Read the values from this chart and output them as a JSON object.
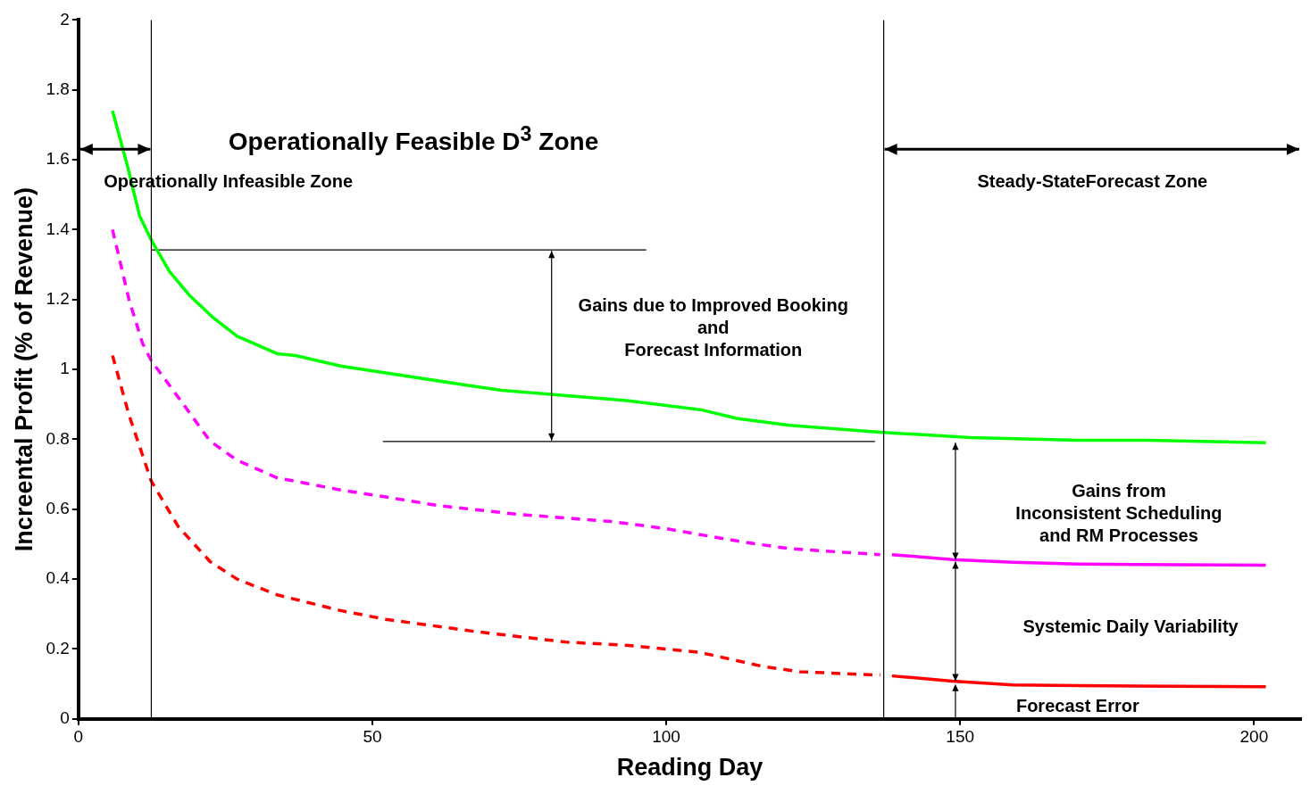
{
  "chart_data": {
    "type": "line",
    "xlabel": "Reading Day",
    "ylabel": "Increental Profit (% of Revenue)",
    "xlim": [
      0,
      208
    ],
    "xticks": [
      0,
      50,
      100,
      150,
      200
    ],
    "ylim": [
      0,
      2
    ],
    "yticks": [
      0,
      {
        "value": 0.2,
        "label": "0.2"
      },
      {
        "value": 0.4,
        "label": "0.4"
      },
      {
        "value": 0.6,
        "label": "0.6"
      },
      {
        "value": 0.8,
        "label": "0.8"
      },
      1,
      {
        "value": 1.2,
        "label": "1.2"
      },
      {
        "value": 1.4,
        "label": "1.4"
      },
      {
        "value": 1.6,
        "label": "1.6"
      },
      {
        "value": 1.8,
        "label": "1.8"
      },
      2
    ],
    "grid": false,
    "legend": false,
    "marker": "none",
    "series": [
      {
        "color": "#00ff00",
        "line_style": "solid",
        "x": [
          5.8,
          8.3,
          10.4,
          12.4,
          15.5,
          19,
          22.8,
          27,
          33.8,
          36.9,
          44.6,
          52.3,
          66,
          72,
          90.5,
          93.6,
          105.8,
          112,
          121,
          136.4,
          151.8,
          170,
          182,
          202
        ],
        "values": [
          1.74,
          1.585,
          1.44,
          1.37,
          1.28,
          1.21,
          1.15,
          1.095,
          1.045,
          1.04,
          1.01,
          0.99,
          0.955,
          0.94,
          0.915,
          0.91,
          0.885,
          0.86,
          0.84,
          0.82,
          0.805,
          0.797,
          0.797,
          0.79
        ]
      },
      {
        "color": "#ff00ff",
        "line_style": "dashed",
        "x": [
          5.8,
          8.6,
          10.9,
          12.4,
          17,
          22.4,
          27,
          33.8,
          44.6,
          52.3,
          61.4,
          75,
          90.5,
          99.7,
          113.5,
          121,
          136.4
        ],
        "values": [
          1.4,
          1.2,
          1.075,
          1.025,
          0.92,
          0.795,
          0.74,
          0.69,
          0.655,
          0.635,
          0.61,
          0.585,
          0.565,
          0.545,
          0.505,
          0.487,
          0.47
        ]
      },
      {
        "color": "#ff00ff",
        "line_style": "solid",
        "x": [
          138.4,
          148.7,
          159,
          170,
          202
        ],
        "values": [
          0.47,
          0.456,
          0.448,
          0.443,
          0.44
        ]
      },
      {
        "color": "#ff0000",
        "line_style": "dashed",
        "x": [
          5.8,
          8.6,
          10.9,
          12.4,
          17,
          22.4,
          27,
          33.8,
          44.6,
          52.3,
          67.5,
          82.8,
          93.6,
          105.8,
          116.5,
          122.7,
          136.4
        ],
        "values": [
          1.04,
          0.87,
          0.755,
          0.68,
          0.55,
          0.45,
          0.4,
          0.355,
          0.31,
          0.285,
          0.25,
          0.22,
          0.21,
          0.19,
          0.15,
          0.135,
          0.125
        ]
      },
      {
        "color": "#ff0000",
        "line_style": "solid",
        "x": [
          138.4,
          148.7,
          159,
          170,
          202
        ],
        "values": [
          0.123,
          0.108,
          0.097,
          0.095,
          0.092
        ]
      },
      {
        "type": "line",
        "color": "#000000",
        "line_style": "solid",
        "x": [
          12.4,
          96.6
        ],
        "values": [
          1.342,
          1.342
        ]
      },
      {
        "type": "line",
        "color": "#000000",
        "line_style": "solid",
        "x": [
          51.8,
          135.5
        ],
        "values": [
          0.794,
          0.794
        ]
      }
    ],
    "ref_lines": [
      {
        "axis": "x",
        "value": 12.4,
        "color": "#000000"
      },
      {
        "axis": "x",
        "value": 137,
        "color": "#000000"
      }
    ],
    "annotations": [
      "Operationally Feasible D$^{3}$ Zone",
      "Operationally Infeasible Zone",
      "Steady-StateForecast Zone",
      "Gains due to Improved Booking\nand\nForecast Information",
      "Gains from\nInconsistent Scheduling\nand RM Processes",
      "Systemic Daily Variability",
      "Forecast Error"
    ]
  }
}
